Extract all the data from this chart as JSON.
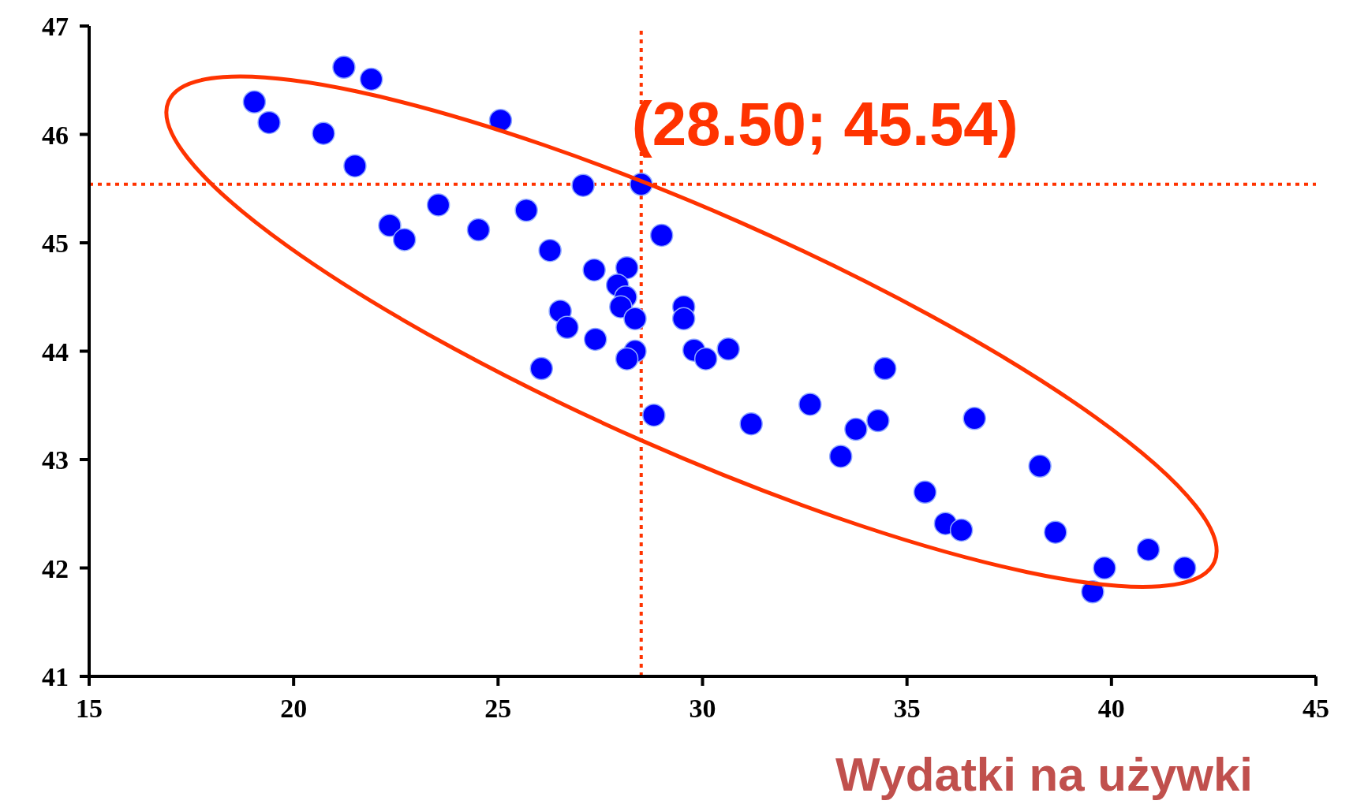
{
  "chart_data": {
    "type": "scatter",
    "xlabel": "Wydatki na używki",
    "xlim": [
      15,
      45
    ],
    "xticks": [
      15,
      20,
      25,
      30,
      35,
      40,
      45
    ],
    "ylim": [
      41,
      47
    ],
    "yticks": [
      41,
      42,
      43,
      44,
      45,
      46,
      47
    ],
    "grid": false,
    "legend": false,
    "marker": "circle",
    "annotations": [
      {
        "text": "(28.50; 45.54)",
        "x": 28.5,
        "y": 45.54
      }
    ],
    "ref_lines": [
      {
        "axis": "x",
        "value": 28.5,
        "label": null,
        "color": "#ff3300",
        "line_style": "dotted"
      },
      {
        "axis": "y",
        "value": 45.54,
        "label": null,
        "color": "#ff3300",
        "line_style": "dotted"
      }
    ],
    "series": [
      {
        "color": "#0000ff",
        "x": [
          19.04,
          19.4,
          21.23,
          21.9,
          20.73,
          21.5,
          25.06,
          22.35,
          22.71,
          23.54,
          24.52,
          25.69,
          27.08,
          28.5,
          29.0,
          26.27,
          27.35,
          28.15,
          27.92,
          28.12,
          28.0,
          26.52,
          26.69,
          28.35,
          27.38,
          29.54,
          29.54,
          29.79,
          30.08,
          30.63,
          28.35,
          28.15,
          26.06,
          28.81,
          31.19,
          32.63,
          33.38,
          33.75,
          34.29,
          34.46,
          36.65,
          35.44,
          35.94,
          36.33,
          38.25,
          38.63,
          39.83,
          39.54,
          40.9,
          41.79
        ],
        "values": [
          46.3,
          46.11,
          46.62,
          46.51,
          46.01,
          45.71,
          46.13,
          45.16,
          45.03,
          45.35,
          45.12,
          45.3,
          45.53,
          45.54,
          45.07,
          44.93,
          44.75,
          44.77,
          44.61,
          44.5,
          44.41,
          44.37,
          44.22,
          44.3,
          44.11,
          44.41,
          44.3,
          44.01,
          43.93,
          44.02,
          44.0,
          43.93,
          43.84,
          43.41,
          43.33,
          43.51,
          43.03,
          43.28,
          43.36,
          43.84,
          43.38,
          42.7,
          42.41,
          42.35,
          42.94,
          42.33,
          42.0,
          41.78,
          42.17,
          42.0
        ]
      }
    ]
  }
}
